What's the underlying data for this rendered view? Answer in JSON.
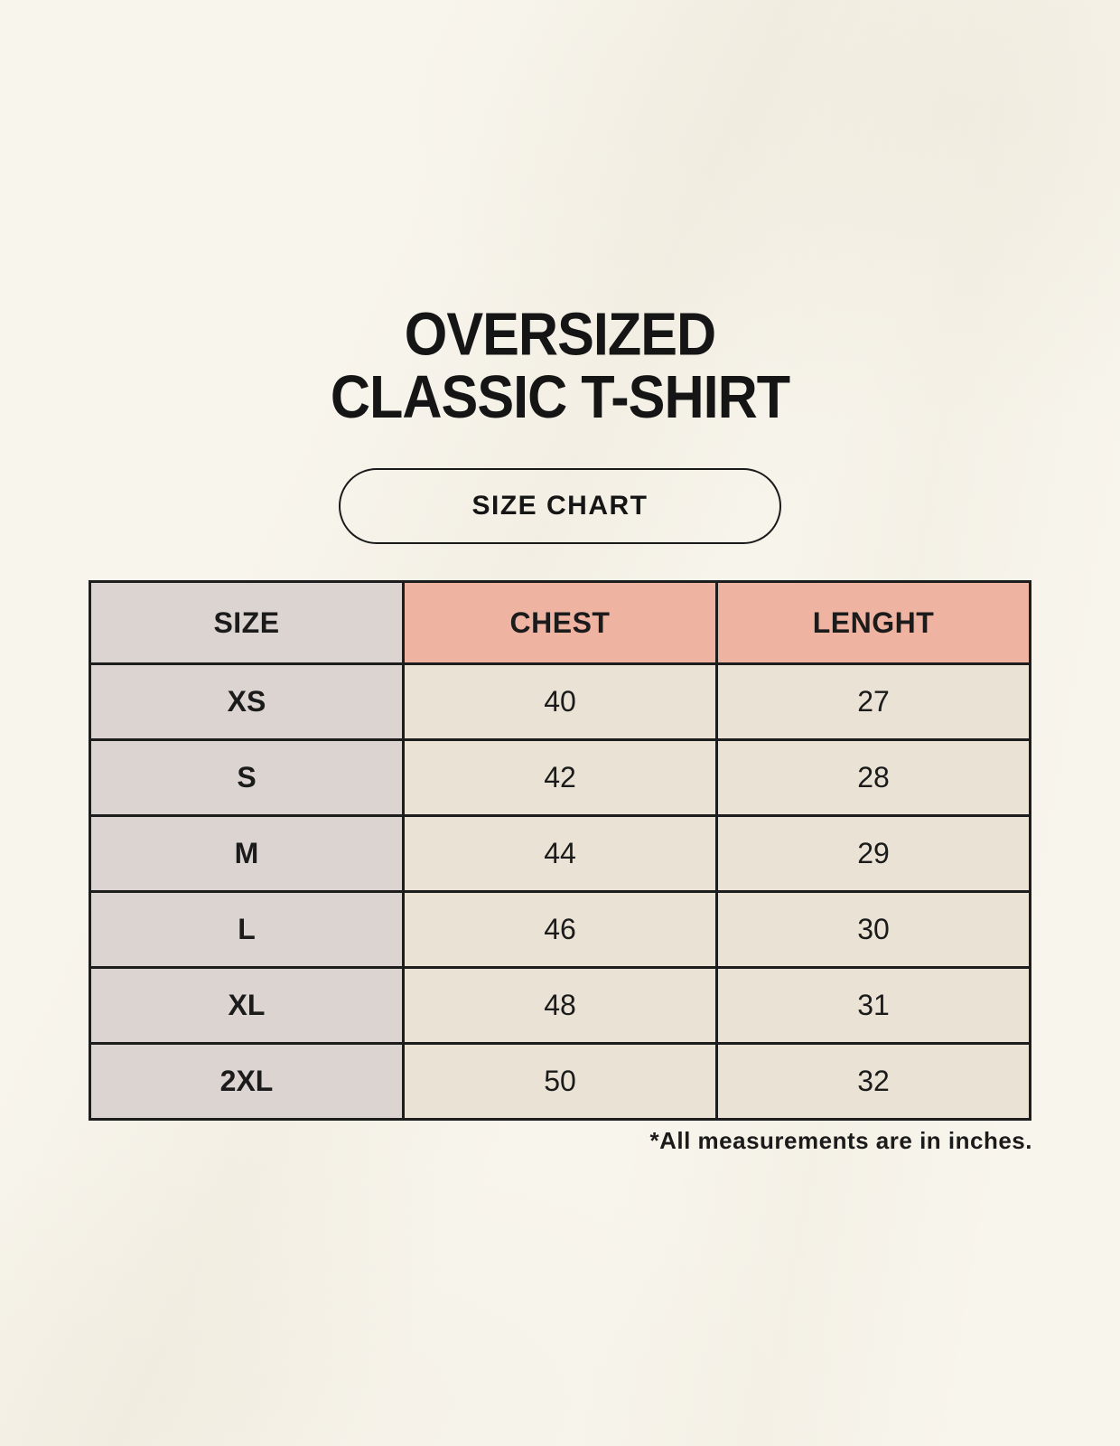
{
  "page": {
    "background_color": "#f8f5ed",
    "text_color": "#1b1b1b"
  },
  "title": {
    "line1": "OVERSIZED",
    "line2": "CLASSIC T-SHIRT"
  },
  "size_chart_button": {
    "label": "SIZE CHART"
  },
  "table": {
    "columns": [
      {
        "label": "SIZE",
        "bg": "#dcd4d1"
      },
      {
        "label": "CHEST",
        "bg": "#efb3a2"
      },
      {
        "label": "LENGHT",
        "bg": "#efb3a2"
      }
    ],
    "rows": [
      {
        "size": "XS",
        "chest": "40",
        "length": "27"
      },
      {
        "size": "S",
        "chest": "42",
        "length": "28"
      },
      {
        "size": "M",
        "chest": "44",
        "length": "29"
      },
      {
        "size": "L",
        "chest": "46",
        "length": "30"
      },
      {
        "size": "XL",
        "chest": "48",
        "length": "31"
      },
      {
        "size": "2XL",
        "chest": "50",
        "length": "32"
      }
    ],
    "colors": {
      "size_column_bg": "#dcd4d1",
      "header_accent_bg": "#efb3a2",
      "data_cell_bg": "#e9e2d5",
      "border": "#1d1d1d"
    }
  },
  "footnote": "*All measurements are in inches."
}
